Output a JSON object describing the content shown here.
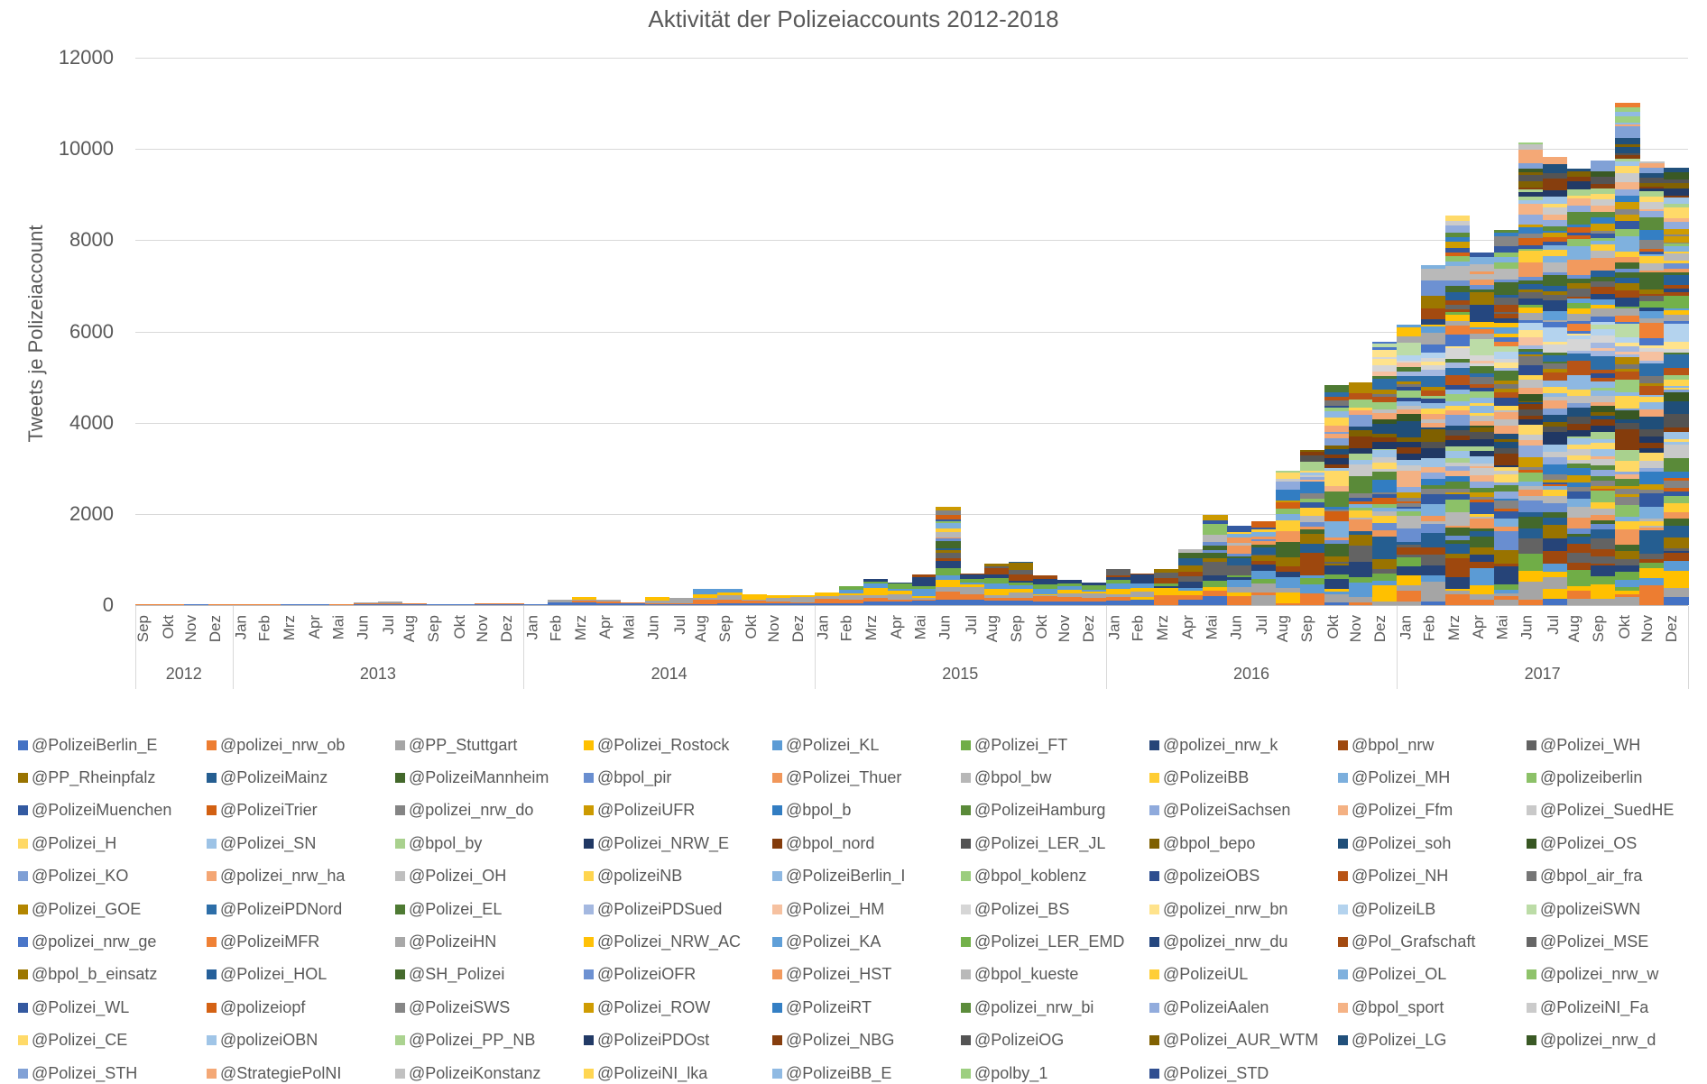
{
  "chart_data": {
    "type": "bar",
    "stacked": true,
    "title": "Aktivität der Polizeiaccounts 2012-2018",
    "xlabel": "",
    "ylabel": "Tweets je Polizeiaccount",
    "ylim": [
      0,
      12000
    ],
    "yticks": [
      0,
      2000,
      4000,
      6000,
      8000,
      10000,
      12000
    ],
    "grid": true,
    "legend_position": "bottom",
    "years": [
      {
        "label": "2012",
        "months": [
          "Sep",
          "Okt",
          "Nov",
          "Dez"
        ]
      },
      {
        "label": "2013",
        "months": [
          "Jan",
          "Feb",
          "Mrz",
          "Apr",
          "Mai",
          "Jun",
          "Jul",
          "Aug",
          "Sep",
          "Okt",
          "Nov",
          "Dez"
        ]
      },
      {
        "label": "2014",
        "months": [
          "Jan",
          "Feb",
          "Mrz",
          "Apr",
          "Mai",
          "Jun",
          "Jul",
          "Aug",
          "Sep",
          "Okt",
          "Nov",
          "Dez"
        ]
      },
      {
        "label": "2015",
        "months": [
          "Jan",
          "Feb",
          "Mrz",
          "Apr",
          "Mai",
          "Jun",
          "Jul",
          "Aug",
          "Sep",
          "Okt",
          "Nov",
          "Dez"
        ]
      },
      {
        "label": "2016",
        "months": [
          "Jan",
          "Feb",
          "Mrz",
          "Apr",
          "Mai",
          "Jun",
          "Jul",
          "Aug",
          "Sep",
          "Okt",
          "Nov",
          "Dez"
        ]
      },
      {
        "label": "2017",
        "months": [
          "Jan",
          "Feb",
          "Mrz",
          "Apr",
          "Mai",
          "Jun",
          "Jul",
          "Aug",
          "Sep",
          "Okt",
          "Nov",
          "Dez"
        ]
      }
    ],
    "categories": [
      "2012-Sep",
      "2012-Okt",
      "2012-Nov",
      "2012-Dez",
      "2013-Jan",
      "2013-Feb",
      "2013-Mrz",
      "2013-Apr",
      "2013-Mai",
      "2013-Jun",
      "2013-Jul",
      "2013-Aug",
      "2013-Sep",
      "2013-Okt",
      "2013-Nov",
      "2013-Dez",
      "2014-Jan",
      "2014-Feb",
      "2014-Mrz",
      "2014-Apr",
      "2014-Mai",
      "2014-Jun",
      "2014-Jul",
      "2014-Aug",
      "2014-Sep",
      "2014-Okt",
      "2014-Nov",
      "2014-Dez",
      "2015-Jan",
      "2015-Feb",
      "2015-Mrz",
      "2015-Apr",
      "2015-Mai",
      "2015-Jun",
      "2015-Jul",
      "2015-Aug",
      "2015-Sep",
      "2015-Okt",
      "2015-Nov",
      "2015-Dez",
      "2016-Jan",
      "2016-Feb",
      "2016-Mrz",
      "2016-Apr",
      "2016-Mai",
      "2016-Jun",
      "2016-Jul",
      "2016-Aug",
      "2016-Sep",
      "2016-Okt",
      "2016-Nov",
      "2016-Dez",
      "2017-Jan",
      "2017-Feb",
      "2017-Mrz",
      "2017-Apr",
      "2017-Mai",
      "2017-Jun",
      "2017-Jul",
      "2017-Aug",
      "2017-Sep",
      "2017-Okt",
      "2017-Nov",
      "2017-Dez"
    ],
    "totals": [
      5,
      5,
      5,
      5,
      10,
      10,
      10,
      10,
      15,
      60,
      80,
      40,
      30,
      30,
      40,
      40,
      30,
      120,
      170,
      110,
      60,
      170,
      150,
      350,
      350,
      240,
      220,
      210,
      270,
      420,
      580,
      500,
      680,
      2150,
      700,
      920,
      960,
      650,
      560,
      500,
      790,
      700,
      800,
      1220,
      1990,
      1750,
      1850,
      2960,
      3400,
      4830,
      4890,
      5780,
      6160,
      7470,
      8550,
      7740,
      8240,
      10160,
      9840,
      9580,
      9760,
      11030,
      9740,
      9600
    ],
    "series": [
      {
        "name": "@PolizeiBerlin_E",
        "color": "#4472c4"
      },
      {
        "name": "@polizei_nrw_ob",
        "color": "#ed7d31"
      },
      {
        "name": "@PP_Stuttgart",
        "color": "#a5a5a5"
      },
      {
        "name": "@Polizei_Rostock",
        "color": "#ffc000"
      },
      {
        "name": "@Polizei_KL",
        "color": "#5b9bd5"
      },
      {
        "name": "@Polizei_FT",
        "color": "#70ad47"
      },
      {
        "name": "@polizei_nrw_k",
        "color": "#264478"
      },
      {
        "name": "@bpol_nrw",
        "color": "#9e480e"
      },
      {
        "name": "@Polizei_WH",
        "color": "#636363"
      },
      {
        "name": "@PP_Rheinpfalz",
        "color": "#997300"
      },
      {
        "name": "@PolizeiMainz",
        "color": "#255e91"
      },
      {
        "name": "@PolizeiMannheim",
        "color": "#43682b"
      },
      {
        "name": "@bpol_pir",
        "color": "#698ed0"
      },
      {
        "name": "@Polizei_Thuer",
        "color": "#f1975a"
      },
      {
        "name": "@bpol_bw",
        "color": "#b7b7b7"
      },
      {
        "name": "@PolizeiBB",
        "color": "#ffcd33"
      },
      {
        "name": "@Polizei_MH",
        "color": "#7cafdd"
      },
      {
        "name": "@polizeiberlin",
        "color": "#8cc168"
      },
      {
        "name": "@PolizeiMuenchen",
        "color": "#335aa1"
      },
      {
        "name": "@PolizeiTrier",
        "color": "#d26012"
      },
      {
        "name": "@polizei_nrw_do",
        "color": "#848484"
      },
      {
        "name": "@PolizeiUFR",
        "color": "#cc9a00"
      },
      {
        "name": "@bpol_b",
        "color": "#327dc2"
      },
      {
        "name": "@PolizeiHamburg",
        "color": "#5a8a39"
      },
      {
        "name": "@PolizeiSachsen",
        "color": "#8faadc"
      },
      {
        "name": "@Polizei_Ffm",
        "color": "#f4b183"
      },
      {
        "name": "@Polizei_SuedHE",
        "color": "#c9c9c9"
      },
      {
        "name": "@Polizei_H",
        "color": "#ffd966"
      },
      {
        "name": "@Polizei_SN",
        "color": "#9dc3e6"
      },
      {
        "name": "@bpol_by",
        "color": "#a9d18e"
      },
      {
        "name": "@Polizei_NRW_E",
        "color": "#203864"
      },
      {
        "name": "@bpol_nord",
        "color": "#843c0c"
      },
      {
        "name": "@Polizei_LER_JL",
        "color": "#525252"
      },
      {
        "name": "@bpol_bepo",
        "color": "#7f6000"
      },
      {
        "name": "@Polizei_soh",
        "color": "#1f4e79"
      },
      {
        "name": "@Polizei_OS",
        "color": "#385723"
      },
      {
        "name": "@Polizei_KO",
        "color": "#7f9fd5"
      },
      {
        "name": "@polizei_nrw_ha",
        "color": "#f4a674"
      },
      {
        "name": "@Polizei_OH",
        "color": "#bfbfbf"
      },
      {
        "name": "@polizeiNB",
        "color": "#ffd54f"
      },
      {
        "name": "@PolizeiBerlin_I",
        "color": "#8eb8e2"
      },
      {
        "name": "@bpol_koblenz",
        "color": "#9bcd7e"
      },
      {
        "name": "@polizeiOBS",
        "color": "#2e4d8f"
      },
      {
        "name": "@Polizei_NH",
        "color": "#b85416"
      },
      {
        "name": "@bpol_air_fra",
        "color": "#767676"
      },
      {
        "name": "@Polizei_GOE",
        "color": "#b38600"
      },
      {
        "name": "@PolizeiPDNord",
        "color": "#2d6ea8"
      },
      {
        "name": "@Polizei_EL",
        "color": "#4e7a33"
      },
      {
        "name": "@PolizeiPDSued",
        "color": "#a4b8e0"
      },
      {
        "name": "@Polizei_HM",
        "color": "#f6c1a0"
      },
      {
        "name": "@Polizei_BS",
        "color": "#d6d6d6"
      },
      {
        "name": "@polizei_nrw_bn",
        "color": "#ffe38c"
      },
      {
        "name": "@PolizeiLB",
        "color": "#b4d3ee"
      },
      {
        "name": "@polizeiSWN",
        "color": "#bcdca7"
      },
      {
        "name": "@polizei_nrw_ge",
        "color": "#4a76c8"
      },
      {
        "name": "@PolizeiMFR",
        "color": "#ef8136"
      },
      {
        "name": "@PolizeiHN",
        "color": "#a8a8a8"
      },
      {
        "name": "@Polizei_NRW_AC",
        "color": "#ffc107"
      },
      {
        "name": "@Polizei_KA",
        "color": "#5f9fd8"
      },
      {
        "name": "@Polizei_LER_EMD",
        "color": "#73b14a"
      },
      {
        "name": "@polizei_nrw_du",
        "color": "#25477f"
      },
      {
        "name": "@Pol_Grafschaft",
        "color": "#a34a10"
      },
      {
        "name": "@Polizei_MSE",
        "color": "#666666"
      },
      {
        "name": "@bpol_b_einsatz",
        "color": "#9c7700"
      },
      {
        "name": "@Polizei_HOL",
        "color": "#26609a"
      },
      {
        "name": "@SH_Polizei",
        "color": "#456b2d"
      },
      {
        "name": "@PolizeiOFR",
        "color": "#6d91d2"
      },
      {
        "name": "@Polizei_HST",
        "color": "#f29a5e"
      },
      {
        "name": "@bpol_kueste",
        "color": "#b9b9b9"
      },
      {
        "name": "@PolizeiUL",
        "color": "#ffce36"
      },
      {
        "name": "@Polizei_OL",
        "color": "#7fb1de"
      },
      {
        "name": "@polizei_nrw_w",
        "color": "#8fc36b"
      },
      {
        "name": "@Polizei_WL",
        "color": "#3459a0"
      },
      {
        "name": "@polizeiopf",
        "color": "#d46214"
      },
      {
        "name": "@PolizeiSWS",
        "color": "#868686"
      },
      {
        "name": "@Polizei_ROW",
        "color": "#cf9c02"
      },
      {
        "name": "@PolizeiRT",
        "color": "#347fc4"
      },
      {
        "name": "@polizei_nrw_bi",
        "color": "#5c8c3b"
      },
      {
        "name": "@PolizeiAalen",
        "color": "#92acdd"
      },
      {
        "name": "@bpol_sport",
        "color": "#f5b386"
      },
      {
        "name": "@PolizeiNI_Fa",
        "color": "#cbcbcb"
      },
      {
        "name": "@Polizei_CE",
        "color": "#ffda69"
      },
      {
        "name": "@polizeiOBN",
        "color": "#a0c5e7"
      },
      {
        "name": "@Polizei_PP_NB",
        "color": "#abd390"
      },
      {
        "name": "@PolizeiPDOst",
        "color": "#223a66"
      },
      {
        "name": "@Polizei_NBG",
        "color": "#863e0e"
      },
      {
        "name": "@PolizeiOG",
        "color": "#545454"
      },
      {
        "name": "@Polizei_AUR_WTM",
        "color": "#816102"
      },
      {
        "name": "@Polizei_LG",
        "color": "#21507b"
      },
      {
        "name": "@polizei_nrw_d",
        "color": "#3a5925"
      },
      {
        "name": "@Polizei_STH",
        "color": "#81a1d6"
      },
      {
        "name": "@StrategiePolNI",
        "color": "#f4a876"
      },
      {
        "name": "@PolizeiKonstanz",
        "color": "#c1c1c1"
      },
      {
        "name": "@PolizeiNI_lka",
        "color": "#ffd652"
      },
      {
        "name": "@PolizeiBB_E",
        "color": "#90bae3"
      },
      {
        "name": "@polby_1",
        "color": "#9dcf80"
      },
      {
        "name": "@Polizei_STD",
        "color": "#304f91"
      }
    ]
  }
}
